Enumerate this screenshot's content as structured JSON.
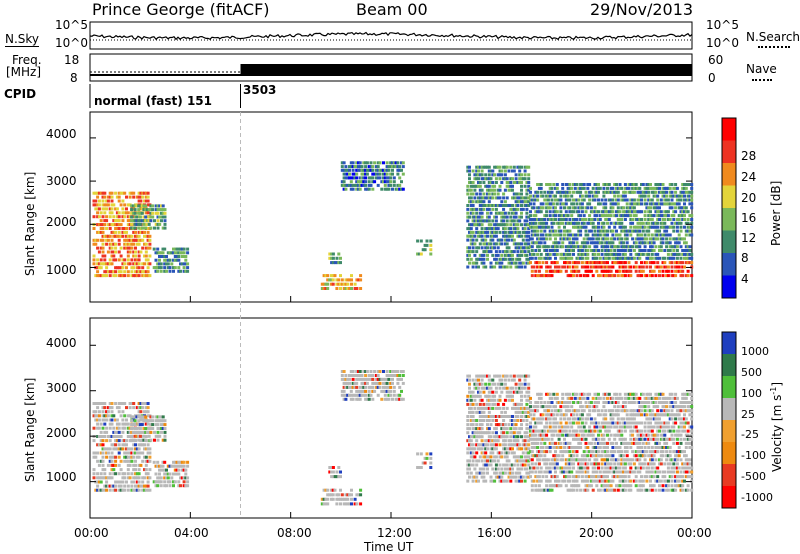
{
  "header": {
    "station": "Prince George (fitACF)",
    "beam": "Beam 00",
    "date": "29/Nov/2013"
  },
  "top_panels": {
    "nsky_label": "N.Sky",
    "nsearch_label": "N.Search",
    "counts_ticks": [
      "10^5",
      "10^0"
    ],
    "freq_label": "Freq.",
    "freq_unit": "[MHz]",
    "freq_ticks": [
      "18",
      "8"
    ],
    "nave_label": "Nave",
    "nave_ticks": [
      "60",
      "0"
    ],
    "cpid_label": "CPID",
    "cpid_segments": [
      {
        "text": "normal (fast) 151",
        "start_hour": 0
      },
      {
        "text": "3503",
        "start_hour": 6
      }
    ]
  },
  "colors": {
    "power_scale": [
      "#0000ee",
      "#2a55b8",
      "#3f8a6a",
      "#7ab85a",
      "#e3d43a",
      "#f08a1e",
      "#ee3322",
      "#ff0000"
    ],
    "velocity_scale": [
      "#1f3fbf",
      "#2f7a4a",
      "#4fbf3a",
      "#b8b8b8",
      "#f0a030",
      "#ee8a10",
      "#e83a22",
      "#ff0000"
    ],
    "ground_scatter": "#b8b8b8"
  },
  "chart_data": [
    {
      "type": "heatmap",
      "name": "power",
      "ylabel": "Slant Range [km]",
      "y_ticks": [
        1000,
        2000,
        3000,
        4000
      ],
      "ylim": [
        200,
        4600
      ],
      "x_ticks": [
        "00:00",
        "04:00",
        "08:00",
        "12:00",
        "16:00",
        "20:00",
        "00:00"
      ],
      "xlim_hours": [
        0,
        24
      ],
      "colorbar": {
        "label": "Power",
        "unit": "[dB]",
        "ticks": [
          4,
          8,
          12,
          16,
          20,
          24,
          28
        ],
        "range": [
          0,
          32
        ]
      },
      "echo_regions": [
        {
          "t": [
            0.1,
            2.4
          ],
          "r": [
            800,
            2800
          ],
          "level": 22
        },
        {
          "t": [
            1.6,
            3.0
          ],
          "r": [
            1900,
            2500
          ],
          "level": 12
        },
        {
          "t": [
            2.5,
            3.9
          ],
          "r": [
            900,
            1500
          ],
          "level": 10
        },
        {
          "t": [
            9.2,
            10.8
          ],
          "r": [
            500,
            900
          ],
          "level": 20
        },
        {
          "t": [
            9.5,
            10.0
          ],
          "r": [
            1100,
            1400
          ],
          "level": 12
        },
        {
          "t": [
            10.0,
            12.5
          ],
          "r": [
            2800,
            3500
          ],
          "level": 8
        },
        {
          "t": [
            13.0,
            13.6
          ],
          "r": [
            1300,
            1700
          ],
          "level": 14
        },
        {
          "t": [
            15.0,
            17.5
          ],
          "r": [
            1000,
            3400
          ],
          "level": 10
        },
        {
          "t": [
            17.5,
            24.0
          ],
          "r": [
            800,
            1200
          ],
          "level": 26
        },
        {
          "t": [
            17.5,
            24.0
          ],
          "r": [
            1200,
            3000
          ],
          "level": 10
        }
      ]
    },
    {
      "type": "heatmap",
      "name": "velocity",
      "ylabel": "Slant Range [km]",
      "y_ticks": [
        1000,
        2000,
        3000,
        4000
      ],
      "ylim": [
        200,
        4600
      ],
      "x_ticks": [
        "00:00",
        "04:00",
        "08:00",
        "12:00",
        "16:00",
        "20:00",
        "00:00"
      ],
      "xlim_hours": [
        0,
        24
      ],
      "xlabel": "Time UT",
      "colorbar": {
        "label": "Velocity",
        "unit": "[m s",
        "unit_exp": "-1",
        "unit_end": "]",
        "ticks": [
          "1000",
          "500",
          "100",
          "25",
          "-25",
          "-100",
          "-500",
          "-1000"
        ]
      }
    }
  ]
}
